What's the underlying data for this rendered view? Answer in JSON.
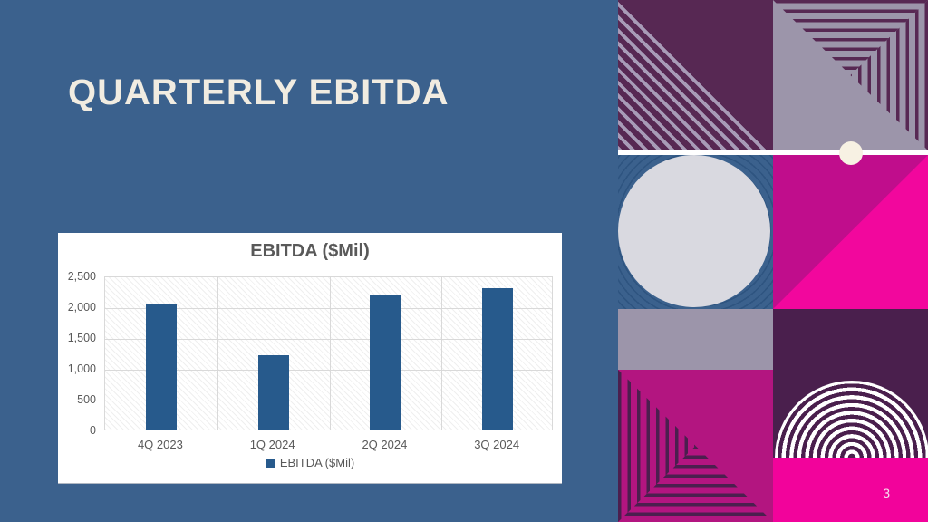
{
  "slide": {
    "title": "QUARTERLY EBITDA",
    "page_number": "3"
  },
  "chart_data": {
    "type": "bar",
    "title": "EBITDA ($Mil)",
    "categories": [
      "4Q 2023",
      "1Q 2024",
      "2Q 2024",
      "3Q 2024"
    ],
    "values": [
      2050,
      1200,
      2180,
      2300
    ],
    "series_name": "EBITDA ($Mil)",
    "xlabel": "",
    "ylabel": "",
    "ylim": [
      0,
      2500
    ],
    "ytick_labels": [
      "0",
      "500",
      "1,000",
      "1,500",
      "2,000",
      "2,500"
    ],
    "grid": true,
    "legend_position": "bottom"
  },
  "legend": {
    "label": "EBITDA ($Mil)"
  },
  "colors": {
    "slide-bg": "#3B618D",
    "title-cream": "#F1ECE1",
    "bar-blue": "#275A8C",
    "axis-gray": "#595959",
    "grid-gray": "#D9D9D9",
    "purple-dark": "#572853",
    "purple-deep": "#4A1F4D",
    "purple-line": "#4B1F4E",
    "lavender-gray": "#9C95AA",
    "lavender-stripe": "#A89BB7",
    "magenta": "#C00D8C",
    "magenta-dull": "#B31580",
    "pink-bright": "#F2079D",
    "pink-band": "#F2039B",
    "ring-blue": "#2E5480",
    "circle-gray": "#D9D9E0",
    "cream-dot": "#F7F1E3"
  }
}
